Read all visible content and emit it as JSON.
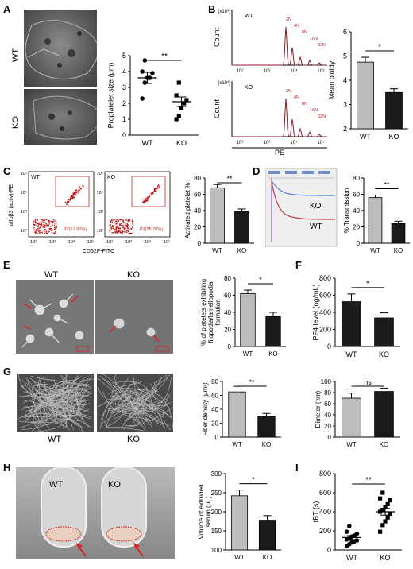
{
  "panels": {
    "A": {
      "letter": "A",
      "image_labels": [
        "WT",
        "KO"
      ],
      "chart_data": {
        "type": "scatter",
        "ylabel": "Proplatelet size (μm)",
        "categories": [
          "WT",
          "KO"
        ],
        "yticks": [
          "0",
          "1",
          "2",
          "3",
          "4",
          "5"
        ],
        "ylim": [
          0,
          5
        ],
        "significance": "**",
        "series": [
          {
            "values": [
              2.3,
              3.3,
              3.6,
              3.6,
              3.9,
              4.0,
              4.7
            ],
            "mean": 3.6,
            "sem": 0.35,
            "marker": "circle"
          },
          {
            "values": [
              1.0,
              1.2,
              1.7,
              2.0,
              2.2,
              2.5,
              3.3
            ],
            "mean": 2.1,
            "sem": 0.3,
            "marker": "square"
          }
        ]
      }
    },
    "B": {
      "letter": "B",
      "flow": {
        "ylabel": "Count",
        "exp_label": "(x10³)",
        "xlabel": "PE",
        "x_ticks": [
          "10²",
          "10³",
          "10⁴",
          "10⁵"
        ],
        "plots": [
          {
            "label": "WT",
            "gates": [
              "2N",
              "4N",
              "8N",
              "16N",
              "32N"
            ]
          },
          {
            "label": "KO",
            "gates": [
              "2N",
              "4N",
              "8N",
              "16N",
              "32N"
            ]
          }
        ]
      },
      "chart_data": {
        "type": "bar",
        "ylabel": "Mean ploidy",
        "categories": [
          "WT",
          "KO"
        ],
        "values": [
          4.75,
          3.5
        ],
        "errors": [
          0.2,
          0.15
        ],
        "yticks": [
          "2",
          "3",
          "4",
          "5",
          "6"
        ],
        "ylim": [
          2,
          6
        ],
        "significance": "*",
        "colors": [
          "#bdbdbd",
          "#1a1a1a"
        ]
      }
    },
    "C": {
      "letter": "C",
      "flow": {
        "ylabel": "αIIbβ3 (activ)-PE",
        "xlabel": "CD62P-FITC",
        "ticks": [
          "10²",
          "10³",
          "10⁴",
          "10⁵"
        ],
        "plots": [
          {
            "label": "WT",
            "gate": "P2(61.60%)"
          },
          {
            "label": "KO",
            "gate": "P2(35.70%)"
          }
        ]
      },
      "chart_data": {
        "type": "bar",
        "ylabel": "Activated platelet %",
        "categories": [
          "WT",
          "KO"
        ],
        "values": [
          68,
          39
        ],
        "errors": [
          4,
          3
        ],
        "yticks": [
          "0",
          "20",
          "40",
          "60",
          "80"
        ],
        "ylim": [
          0,
          80
        ],
        "significance": "**",
        "colors": [
          "#bdbdbd",
          "#1a1a1a"
        ]
      }
    },
    "D": {
      "letter": "D",
      "trace_labels": [
        "KO",
        "WT"
      ],
      "chart_data": {
        "type": "bar",
        "ylabel": "% Transmission",
        "categories": [
          "WT",
          "KO"
        ],
        "values": [
          56,
          24
        ],
        "errors": [
          3,
          3
        ],
        "yticks": [
          "0",
          "20",
          "40",
          "60",
          "80"
        ],
        "ylim": [
          0,
          80
        ],
        "significance": "**",
        "colors": [
          "#bdbdbd",
          "#1a1a1a"
        ]
      }
    },
    "E": {
      "letter": "E",
      "image_labels": [
        "WT",
        "KO"
      ],
      "chart_data": {
        "type": "bar",
        "ylabel": "% of platelets exhibiting filopodia/lamellopodia formation",
        "ylabel_lines": [
          "% of platelets exhibiting",
          "filopodia/lamellopodia",
          "formation"
        ],
        "categories": [
          "WT",
          "KO"
        ],
        "values": [
          62,
          35
        ],
        "errors": [
          4,
          5
        ],
        "yticks": [
          "0",
          "20",
          "40",
          "60",
          "80"
        ],
        "ylim": [
          0,
          80
        ],
        "significance": "*",
        "colors": [
          "#bdbdbd",
          "#1a1a1a"
        ]
      }
    },
    "F": {
      "letter": "F",
      "chart_data": {
        "type": "bar",
        "ylabel": "PF4 level (ng/mL)",
        "categories": [
          "WT",
          "KO"
        ],
        "values": [
          525,
          335
        ],
        "errors": [
          90,
          60
        ],
        "yticks": [
          "0",
          "200",
          "400",
          "600",
          "800"
        ],
        "ylim": [
          0,
          800
        ],
        "significance": "*",
        "colors": [
          "#1a1a1a",
          "#1a1a1a"
        ]
      }
    },
    "G": {
      "letter": "G",
      "image_labels": [
        "WT",
        "KO"
      ],
      "chart_data": [
        {
          "type": "bar",
          "ylabel": "Fiber density (μm²)",
          "categories": [
            "WT",
            "KO"
          ],
          "values": [
            65,
            30
          ],
          "errors": [
            8,
            4
          ],
          "yticks": [
            "0",
            "20",
            "40",
            "60",
            "80"
          ],
          "ylim": [
            0,
            80
          ],
          "significance": "**",
          "colors": [
            "#bdbdbd",
            "#1a1a1a"
          ]
        },
        {
          "type": "bar",
          "ylabel": "Dimeter (nm)",
          "categories": [
            "WT",
            "KO"
          ],
          "values": [
            70,
            82
          ],
          "errors": [
            9,
            6
          ],
          "yticks": [
            "0",
            "20",
            "40",
            "60",
            "80",
            "100"
          ],
          "ylim": [
            0,
            100
          ],
          "significance": "ns",
          "colors": [
            "#bdbdbd",
            "#1a1a1a"
          ]
        }
      ]
    },
    "H": {
      "letter": "H",
      "image_labels": [
        "WT",
        "KO"
      ],
      "chart_data": {
        "type": "bar",
        "ylabel": "Volume of extruded serum (μL)",
        "ylabel_lines": [
          "Volume of extruded",
          "serum (μL)"
        ],
        "categories": [
          "WT",
          "KO"
        ],
        "values": [
          242,
          178
        ],
        "errors": [
          15,
          12
        ],
        "yticks": [
          "100",
          "150",
          "200",
          "250",
          "300"
        ],
        "ylim": [
          100,
          300
        ],
        "significance": "*",
        "colors": [
          "#bdbdbd",
          "#1a1a1a"
        ]
      }
    },
    "I": {
      "letter": "I",
      "chart_data": {
        "type": "scatter",
        "ylabel": "tBT (s)",
        "categories": [
          "WT",
          "KO"
        ],
        "yticks": [
          "0",
          "200",
          "400",
          "600",
          "800"
        ],
        "ylim": [
          0,
          800
        ],
        "significance": "**",
        "series": [
          {
            "values": [
              40,
              60,
              80,
              90,
              100,
              110,
              120,
              140,
              150,
              170,
              190,
              250
            ],
            "mean": 130,
            "sem": 20,
            "marker": "circle"
          },
          {
            "values": [
              190,
              260,
              300,
              340,
              380,
              400,
              420,
              450,
              480,
              520,
              540,
              600
            ],
            "mean": 400,
            "sem": 35,
            "marker": "square"
          }
        ]
      }
    }
  }
}
